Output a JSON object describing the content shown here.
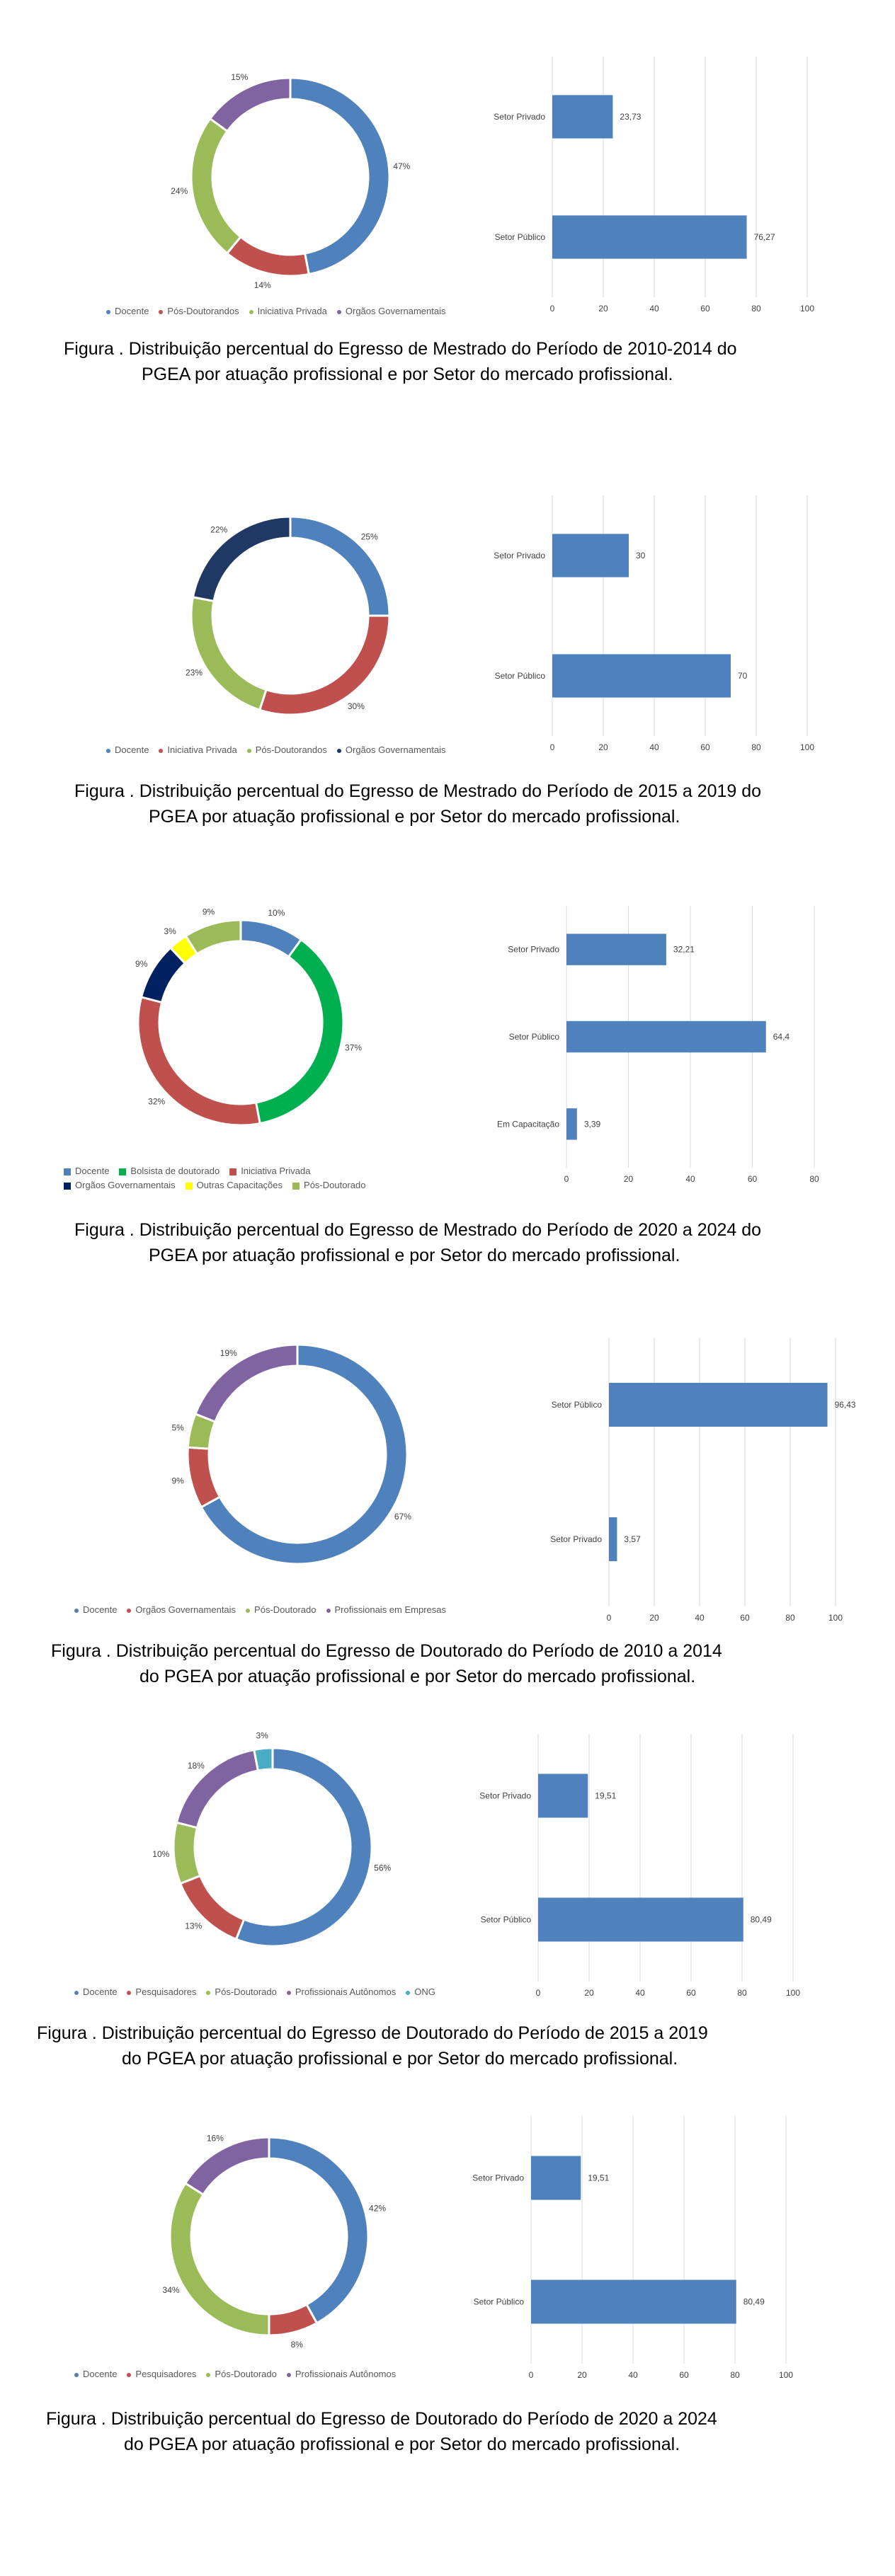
{
  "figures": [
    {
      "caption": {
        "line1": "Figura   . Distribuição percentual do Egresso de Mestrado do Período de 2010-2014 do",
        "line2": "PGEA por atuação profissional e por Setor do mercado profissional."
      },
      "legend": [
        {
          "label": "Docente",
          "color": "#4f81bd"
        },
        {
          "label": "Pós-Doutorandos",
          "color": "#c0504d"
        },
        {
          "label": "Iniciativa Privada",
          "color": "#9bbb59"
        },
        {
          "label": "Orgãos Governamentais",
          "color": "#8064a2"
        }
      ]
    },
    {
      "caption": {
        "line1": "Figura   . Distribuição percentual do Egresso de Mestrado do Período de 2015 a 2019 do",
        "line2": "PGEA por atuação profissional e por Setor do mercado profissional."
      },
      "legend": [
        {
          "label": "Docente",
          "color": "#4f81bd"
        },
        {
          "label": "Iniciativa Privada",
          "color": "#c0504d"
        },
        {
          "label": "Pós-Doutorandos",
          "color": "#9bbb59"
        },
        {
          "label": "Orgãos Governamentais",
          "color": "#1f3864"
        }
      ]
    },
    {
      "caption": {
        "line1": "Figura   . Distribuição percentual do Egresso de Mestrado do Período de 2020 a 2024 do",
        "line2": "PGEA por atuação profissional e por Setor do mercado profissional."
      },
      "legend": [
        {
          "label": "Docente",
          "color": "#4f81bd"
        },
        {
          "label": "Bolsista de doutorado",
          "color": "#00b050"
        },
        {
          "label": "Iniciativa Privada",
          "color": "#c0504d"
        },
        {
          "label": "Orgãos Governamentais",
          "color": "#002060"
        },
        {
          "label": "Outras Capacitações",
          "color": "#ffff00"
        },
        {
          "label": "Pós-Doutorado",
          "color": "#9bbb59"
        }
      ]
    },
    {
      "caption": {
        "line1": "Figura   . Distribuição percentual do Egresso de Doutorado do Período de 2010 a 2014",
        "line2": "do PGEA por atuação profissional e por Setor do mercado profissional."
      },
      "legend": [
        {
          "label": "Docente",
          "color": "#4f81bd"
        },
        {
          "label": "Orgãos Governamentais",
          "color": "#c0504d"
        },
        {
          "label": "Pós-Doutorado",
          "color": "#9bbb59"
        },
        {
          "label": "Profissionais em Empresas",
          "color": "#8064a2"
        }
      ]
    },
    {
      "caption": {
        "line1": "Figura  . Distribuição percentual do Egresso de Doutorado do Período de 2015 a 2019",
        "line2": "do PGEA por atuação profissional e por Setor do mercado profissional."
      },
      "legend": [
        {
          "label": "Docente",
          "color": "#4f81bd"
        },
        {
          "label": "Pesquisadores",
          "color": "#c0504d"
        },
        {
          "label": "Pós-Doutorado",
          "color": "#9bbb59"
        },
        {
          "label": "Profissionais Autônomos",
          "color": "#8064a2"
        },
        {
          "label": "ONG",
          "color": "#4bacc6"
        }
      ]
    },
    {
      "caption": {
        "line1": "Figura  . Distribuição percentual do Egresso de Doutorado do Período de 2020 a 2024",
        "line2": "do PGEA por atuação profissional e por Setor do mercado profissional."
      },
      "legend": [
        {
          "label": "Docente",
          "color": "#4f81bd"
        },
        {
          "label": "Pesquisadores",
          "color": "#c0504d"
        },
        {
          "label": "Pós-Doutorado",
          "color": "#9bbb59"
        },
        {
          "label": "Profissionais Autônomos",
          "color": "#8064a2"
        }
      ]
    }
  ],
  "chart_data": [
    {
      "type": "pie",
      "donut": true,
      "categories": [
        "Docente",
        "Pós-Doutorandos",
        "Iniciativa Privada",
        "Orgãos Governamentais"
      ],
      "values": [
        47,
        14,
        24,
        15
      ],
      "labels": [
        "47%",
        "14%",
        "24%",
        "15%"
      ],
      "colors": [
        "#4f81bd",
        "#c0504d",
        "#9bbb59",
        "#8064a2"
      ]
    },
    {
      "type": "bar",
      "orientation": "horizontal",
      "categories": [
        "Setor Privado",
        "Setor Público"
      ],
      "values": [
        23.73,
        76.27
      ],
      "value_labels": [
        "23,73",
        "76,27"
      ],
      "xlim": [
        0,
        100
      ],
      "ticks": [
        0,
        20,
        40,
        60,
        80,
        100
      ]
    },
    {
      "type": "pie",
      "donut": true,
      "categories": [
        "Docente",
        "Iniciativa Privada",
        "Pós-Doutorandos",
        "Orgãos Governamentais"
      ],
      "values": [
        25,
        30,
        23,
        22
      ],
      "labels": [
        "25%",
        "30%",
        "23%",
        "22%"
      ],
      "colors": [
        "#4f81bd",
        "#c0504d",
        "#9bbb59",
        "#1f3864"
      ]
    },
    {
      "type": "bar",
      "orientation": "horizontal",
      "categories": [
        "Setor Privado",
        "Setor Público"
      ],
      "values": [
        30,
        70
      ],
      "value_labels": [
        "30",
        "70"
      ],
      "xlim": [
        0,
        100
      ],
      "ticks": [
        0,
        20,
        40,
        60,
        80,
        100
      ]
    },
    {
      "type": "pie",
      "donut": true,
      "categories": [
        "Docente",
        "Bolsista de doutorado",
        "Iniciativa Privada",
        "Orgãos Governamentais",
        "Outras Capacitações",
        "Pós-Doutorado"
      ],
      "values": [
        10,
        37,
        32,
        9,
        3,
        9
      ],
      "labels": [
        "10%",
        "37%",
        "32%",
        "9%",
        "3%",
        "9%"
      ],
      "colors": [
        "#4f81bd",
        "#00b050",
        "#c0504d",
        "#002060",
        "#ffff00",
        "#9bbb59"
      ]
    },
    {
      "type": "bar",
      "orientation": "horizontal",
      "categories": [
        "Setor Privado",
        "Setor Público",
        "Em Capacitação"
      ],
      "values": [
        32.21,
        64.4,
        3.39
      ],
      "value_labels": [
        "32,21",
        "64,4",
        "3,39"
      ],
      "xlim": [
        0,
        80
      ],
      "ticks": [
        0,
        20,
        40,
        60,
        80
      ]
    },
    {
      "type": "pie",
      "donut": true,
      "categories": [
        "Docente",
        "Orgãos Governamentais",
        "Pós-Doutorado",
        "Profissionais em Empresas"
      ],
      "values": [
        67,
        9,
        5,
        19
      ],
      "labels": [
        "67%",
        "9%",
        "5%",
        "19%"
      ],
      "colors": [
        "#4f81bd",
        "#c0504d",
        "#9bbb59",
        "#8064a2"
      ]
    },
    {
      "type": "bar",
      "orientation": "horizontal",
      "categories": [
        "Setor Público",
        "Setor Privado"
      ],
      "values": [
        96.43,
        3.57
      ],
      "value_labels": [
        "96,43",
        "3,57"
      ],
      "xlim": [
        0,
        100
      ],
      "ticks": [
        0,
        20,
        40,
        60,
        80,
        100
      ]
    },
    {
      "type": "pie",
      "donut": true,
      "categories": [
        "Docente",
        "Pesquisadores",
        "Pós-Doutorado",
        "Profissionais Autônomos",
        "ONG"
      ],
      "values": [
        56,
        13,
        10,
        18,
        3
      ],
      "labels": [
        "56%",
        "13%",
        "10%",
        "18%",
        "3%"
      ],
      "colors": [
        "#4f81bd",
        "#c0504d",
        "#9bbb59",
        "#8064a2",
        "#4bacc6"
      ]
    },
    {
      "type": "bar",
      "orientation": "horizontal",
      "categories": [
        "Setor Privado",
        "Setor Público"
      ],
      "values": [
        19.51,
        80.49
      ],
      "value_labels": [
        "19,51",
        "80,49"
      ],
      "xlim": [
        0,
        100
      ],
      "ticks": [
        0,
        20,
        40,
        60,
        80,
        100
      ]
    },
    {
      "type": "pie",
      "donut": true,
      "categories": [
        "Docente",
        "Pesquisadores",
        "Pós-Doutorado",
        "Profissionais Autônomos"
      ],
      "values": [
        42,
        8,
        34,
        16
      ],
      "labels": [
        "42%",
        "8%",
        "34%",
        "16%"
      ],
      "colors": [
        "#4f81bd",
        "#c0504d",
        "#9bbb59",
        "#8064a2"
      ]
    },
    {
      "type": "bar",
      "orientation": "horizontal",
      "categories": [
        "Setor Privado",
        "Setor Público"
      ],
      "values": [
        19.51,
        80.49
      ],
      "value_labels": [
        "19,51",
        "80,49"
      ],
      "xlim": [
        0,
        100
      ],
      "ticks": [
        0,
        20,
        40,
        60,
        80,
        100
      ]
    }
  ]
}
